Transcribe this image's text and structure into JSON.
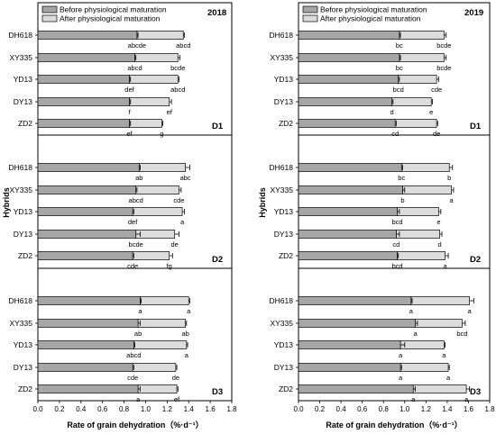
{
  "legend": {
    "before_label": "Before physiological maturation",
    "after_label": "After physiological maturation"
  },
  "colors": {
    "before": "#a6a6a6",
    "after": "#dcdcdc",
    "stroke": "#000000"
  },
  "chart_data": [
    {
      "type": "bar",
      "orientation": "horizontal-stacked",
      "year": "2018",
      "ylabel": "Hybrids",
      "xlabel": "Rate of grain dehydration（%·d⁻¹）",
      "xlim": [
        0.0,
        1.8
      ],
      "xticks": [
        "0.0",
        "0.2",
        "0.4",
        "0.6",
        "0.8",
        "1.0",
        "1.2",
        "1.4",
        "1.6",
        "1.8"
      ],
      "categories": [
        "DH618",
        "XY335",
        "YD13",
        "DY13",
        "ZD2"
      ],
      "series": [
        {
          "name": "Before physiological maturation",
          "key": "before"
        },
        {
          "name": "After physiological maturation",
          "key": "after"
        }
      ],
      "panels": [
        {
          "id": "D1",
          "before": [
            0.92,
            0.9,
            0.85,
            0.85,
            0.85
          ],
          "before_err": [
            0.01,
            0.01,
            0.01,
            0.01,
            0.01
          ],
          "after_total": [
            1.35,
            1.3,
            1.3,
            1.22,
            1.15
          ],
          "after_err": [
            0.01,
            0.02,
            0.01,
            0.02,
            0.01
          ],
          "before_sig": [
            "abcde",
            "abcd",
            "def",
            "f",
            "ef"
          ],
          "after_sig": [
            "abcd",
            "bcde",
            "abcd",
            "ef",
            "g"
          ]
        },
        {
          "id": "D2",
          "before": [
            0.94,
            0.91,
            0.88,
            0.91,
            0.88
          ],
          "before_err": [
            0.01,
            0.01,
            0.01,
            0.04,
            0.01
          ],
          "after_total": [
            1.37,
            1.31,
            1.34,
            1.27,
            1.22
          ],
          "after_err": [
            0.04,
            0.02,
            0.02,
            0.04,
            0.03
          ],
          "before_sig": [
            "ab",
            "abcd",
            "def",
            "bcde",
            "cde"
          ],
          "after_sig": [
            "abc",
            "cde",
            "a",
            "de",
            "fg"
          ]
        },
        {
          "id": "D3",
          "before": [
            0.95,
            0.93,
            0.89,
            0.88,
            0.93
          ],
          "before_err": [
            0.01,
            0.02,
            0.01,
            0.01,
            0.02
          ],
          "after_total": [
            1.4,
            1.37,
            1.38,
            1.28,
            1.29
          ],
          "after_err": [
            0.01,
            0.01,
            0.01,
            0.01,
            0.01
          ],
          "before_sig": [
            "a",
            "ab",
            "abcd",
            "cde",
            "a"
          ],
          "after_sig": [
            "a",
            "ab",
            "a",
            "de",
            "ef"
          ]
        }
      ]
    },
    {
      "type": "bar",
      "orientation": "horizontal-stacked",
      "year": "2019",
      "ylabel": "Hybrids",
      "xlabel": "Rate of grain dehydration（%·d⁻¹）",
      "xlim": [
        0.0,
        1.8
      ],
      "xticks": [
        "0.0",
        "0.2",
        "0.4",
        "0.6",
        "0.8",
        "1.0",
        "1.2",
        "1.4",
        "1.6",
        "1.8"
      ],
      "categories": [
        "DH618",
        "XY335",
        "YD13",
        "DY13",
        "ZD2"
      ],
      "series": [
        {
          "name": "Before physiological maturation",
          "key": "before"
        },
        {
          "name": "After physiological maturation",
          "key": "after"
        }
      ],
      "panels": [
        {
          "id": "D1",
          "before": [
            0.95,
            0.95,
            0.94,
            0.88,
            0.91
          ],
          "before_err": [
            0.01,
            0.01,
            0.01,
            0.01,
            0.01
          ],
          "after_total": [
            1.37,
            1.37,
            1.3,
            1.25,
            1.3
          ],
          "after_err": [
            0.02,
            0.02,
            0.02,
            0.01,
            0.01
          ],
          "before_sig": [
            "bc",
            "bc",
            "bcd",
            "d",
            "cd"
          ],
          "after_sig": [
            "bcde",
            "bcde",
            "cde",
            "e",
            "de"
          ]
        },
        {
          "id": "D2",
          "before": [
            0.97,
            0.98,
            0.93,
            0.92,
            0.93
          ],
          "before_err": [
            0.01,
            0.02,
            0.02,
            0.03,
            0.01
          ],
          "after_total": [
            1.42,
            1.44,
            1.32,
            1.33,
            1.38
          ],
          "after_err": [
            0.03,
            0.02,
            0.02,
            0.02,
            0.03
          ],
          "before_sig": [
            "bc",
            "b",
            "bcd",
            "cd",
            "bcd"
          ],
          "after_sig": [
            "b",
            "a",
            "e",
            "d",
            "a"
          ]
        },
        {
          "id": "D3",
          "before": [
            1.06,
            1.1,
            0.96,
            0.96,
            1.08
          ],
          "before_err": [
            0.01,
            0.02,
            0.04,
            0.01,
            0.02
          ],
          "after_total": [
            1.61,
            1.54,
            1.37,
            1.41,
            1.58
          ],
          "after_err": [
            0.04,
            0.03,
            0.01,
            0.01,
            0.03
          ],
          "before_sig": [
            "a",
            "a",
            "a",
            "a",
            "a"
          ],
          "after_sig": [
            "a",
            "bcd",
            "a",
            "a",
            "a"
          ]
        }
      ]
    }
  ]
}
